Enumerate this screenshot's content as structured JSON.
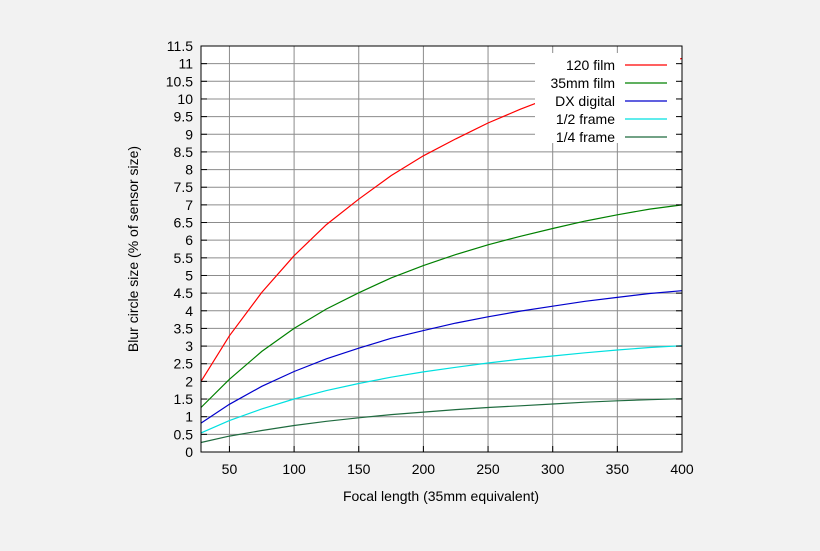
{
  "chart_data": {
    "type": "line",
    "title": "",
    "xlabel": "Focal length (35mm equivalent)",
    "ylabel": "Blur circle size (% of sensor size)",
    "xlim": [
      28,
      400
    ],
    "ylim": [
      0,
      11.5
    ],
    "grid": true,
    "legend_position": "top-right",
    "x_ticks": [
      50,
      100,
      150,
      200,
      250,
      300,
      350,
      400
    ],
    "y_ticks": [
      0,
      0.5,
      1,
      1.5,
      2,
      2.5,
      3,
      3.5,
      4,
      4.5,
      5,
      5.5,
      6,
      6.5,
      7,
      7.5,
      8,
      8.5,
      9,
      9.5,
      10,
      10.5,
      11,
      11.5
    ],
    "x": [
      28,
      50,
      75,
      100,
      125,
      150,
      175,
      200,
      225,
      250,
      275,
      300,
      325,
      350,
      375,
      400
    ],
    "series": [
      {
        "name": "120 film",
        "color": "#ff0000",
        "values": [
          2.0,
          3.29,
          4.52,
          5.56,
          6.44,
          7.16,
          7.83,
          8.39,
          8.87,
          9.32,
          9.71,
          10.06,
          10.39,
          10.68,
          10.94,
          11.15
        ]
      },
      {
        "name": "35mm film",
        "color": "#008000",
        "values": [
          1.26,
          2.06,
          2.85,
          3.5,
          4.05,
          4.51,
          4.93,
          5.28,
          5.59,
          5.87,
          6.11,
          6.33,
          6.54,
          6.72,
          6.88,
          7.0
        ]
      },
      {
        "name": "DX digital",
        "color": "#0000cc",
        "values": [
          0.82,
          1.35,
          1.86,
          2.28,
          2.64,
          2.94,
          3.22,
          3.44,
          3.65,
          3.83,
          3.99,
          4.13,
          4.27,
          4.38,
          4.49,
          4.57
        ]
      },
      {
        "name": "1/2 frame",
        "color": "#00e0e0",
        "values": [
          0.54,
          0.89,
          1.22,
          1.5,
          1.74,
          1.94,
          2.12,
          2.27,
          2.4,
          2.52,
          2.63,
          2.72,
          2.81,
          2.89,
          2.96,
          3.01
        ]
      },
      {
        "name": "1/4 frame",
        "color": "#1f6b3f",
        "values": [
          0.27,
          0.45,
          0.61,
          0.75,
          0.87,
          0.97,
          1.06,
          1.13,
          1.2,
          1.26,
          1.31,
          1.36,
          1.41,
          1.45,
          1.48,
          1.51
        ]
      }
    ]
  }
}
